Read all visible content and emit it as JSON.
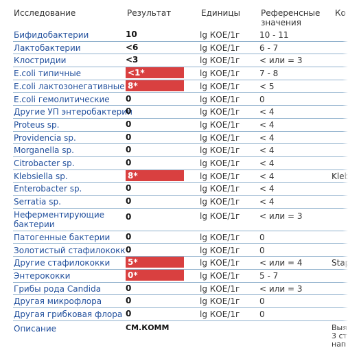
{
  "header": {
    "col_study": "Исследование",
    "col_result": "Результат",
    "col_units": "Единицы",
    "col_reference": "Референсные значения",
    "col_comment": "Ко"
  },
  "rows": [
    {
      "name": "Бифидобактерии",
      "result": "10",
      "flag": false,
      "units": "lg КОЕ/1г",
      "ref": "10 - 11",
      "comment": ""
    },
    {
      "name": "Лактобактерии",
      "result": "<6",
      "flag": false,
      "units": "lg КОЕ/1г",
      "ref": "6 - 7",
      "comment": ""
    },
    {
      "name": "Клостридии",
      "result": "<3",
      "flag": false,
      "units": "lg КОЕ/1г",
      "ref": "< или = 3",
      "comment": ""
    },
    {
      "name": "E.coli типичные",
      "result": "<1*",
      "flag": true,
      "units": "lg КОЕ/1г",
      "ref": "7 - 8",
      "comment": ""
    },
    {
      "name": "E.coli лактозонегативные",
      "result": "8*",
      "flag": true,
      "units": "lg КОЕ/1г",
      "ref": "< 5",
      "comment": ""
    },
    {
      "name": "E.coli гемолитические",
      "result": "0",
      "flag": false,
      "units": "lg КОЕ/1г",
      "ref": "0",
      "comment": ""
    },
    {
      "name": "Другие УП энтеробактерии",
      "result": "0",
      "flag": false,
      "units": "lg КОЕ/1г",
      "ref": "< 4",
      "comment": ""
    },
    {
      "name": "Proteus sp.",
      "result": "0",
      "flag": false,
      "units": "lg КОЕ/1г",
      "ref": "< 4",
      "comment": ""
    },
    {
      "name": "Providencia sp.",
      "result": "0",
      "flag": false,
      "units": "lg КОЕ/1г",
      "ref": "< 4",
      "comment": ""
    },
    {
      "name": "Morganella sp.",
      "result": "0",
      "flag": false,
      "units": "lg КОЕ/1г",
      "ref": "< 4",
      "comment": ""
    },
    {
      "name": "Citrobacter sp.",
      "result": "0",
      "flag": false,
      "units": "lg КОЕ/1г",
      "ref": "< 4",
      "comment": ""
    },
    {
      "name": "Klebsiella sp.",
      "result": "8*",
      "flag": true,
      "units": "lg КОЕ/1г",
      "ref": "< 4",
      "comment": "Kleb"
    },
    {
      "name": "Enterobacter sp.",
      "result": "0",
      "flag": false,
      "units": "lg КОЕ/1г",
      "ref": "< 4",
      "comment": ""
    },
    {
      "name": "Serratia sp.",
      "result": "0",
      "flag": false,
      "units": "lg КОЕ/1г",
      "ref": "< 4",
      "comment": ""
    },
    {
      "name": "Неферментирующие бактерии",
      "result": "0",
      "flag": false,
      "units": "lg КОЕ/1г",
      "ref": "< или = 3",
      "comment": "",
      "tall": true
    },
    {
      "name": "Патогенные бактерии",
      "result": "0",
      "flag": false,
      "units": "lg КОЕ/1г",
      "ref": "0",
      "comment": ""
    },
    {
      "name": "Золотистый стафилококк",
      "result": "0",
      "flag": false,
      "units": "lg КОЕ/1г",
      "ref": "0",
      "comment": ""
    },
    {
      "name": "Другие стафилококки",
      "result": "5*",
      "flag": true,
      "units": "lg КОЕ/1г",
      "ref": "< или = 4",
      "comment": "Stap"
    },
    {
      "name": "Энтерококки",
      "result": "0*",
      "flag": true,
      "units": "lg КОЕ/1г",
      "ref": "5 - 7",
      "comment": ""
    },
    {
      "name": "Грибы рода Candida",
      "result": "0",
      "flag": false,
      "units": "lg КОЕ/1г",
      "ref": "< или = 3",
      "comment": ""
    },
    {
      "name": "Другая микрофлора",
      "result": "0",
      "flag": false,
      "units": "lg КОЕ/1г",
      "ref": "0",
      "comment": ""
    },
    {
      "name": "Другая грибковая флора",
      "result": "0",
      "flag": false,
      "units": "lg КОЕ/1г",
      "ref": "0",
      "comment": ""
    }
  ],
  "description": {
    "name": "Описание",
    "result": "СМ.КОММ",
    "comment": "Выя\n3 ст\nнап"
  },
  "colors": {
    "flag_bg": "#d94040",
    "name_text": "#1f4e9c",
    "line": "#8fb0cc"
  }
}
